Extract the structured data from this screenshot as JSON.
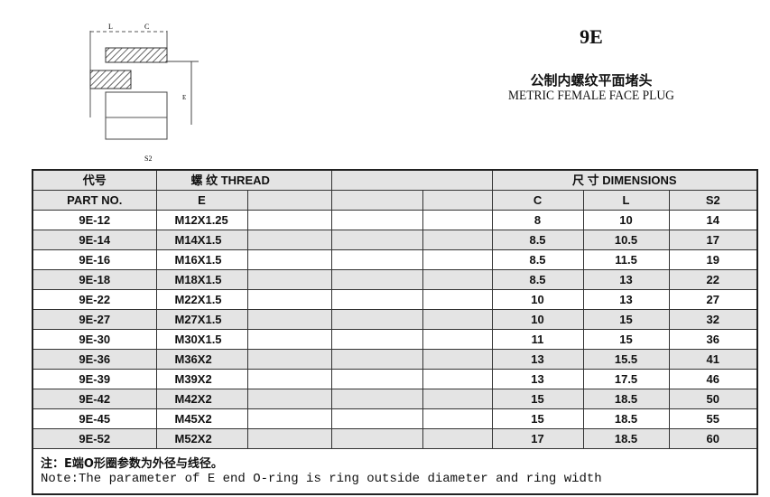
{
  "header": {
    "code": "9E",
    "title_cn": "公制内螺纹平面堵头",
    "title_en": "METRIC FEMALE FACE PLUG"
  },
  "drawing": {
    "labels": [
      "L",
      "C",
      "E",
      "S2"
    ]
  },
  "table": {
    "head1": {
      "part_cn": "代号",
      "thread": "螺  纹  THREAD",
      "dimensions": "尺  寸 DIMENSIONS"
    },
    "head2": {
      "part_en": "PART NO.",
      "e": "E",
      "c": "C",
      "l": "L",
      "s2": "S2"
    },
    "rows": [
      {
        "part": "9E-12",
        "e": "M12X1.25",
        "c": "8",
        "l": "10",
        "s2": "14"
      },
      {
        "part": "9E-14",
        "e": "M14X1.5",
        "c": "8.5",
        "l": "10.5",
        "s2": "17"
      },
      {
        "part": "9E-16",
        "e": "M16X1.5",
        "c": "8.5",
        "l": "11.5",
        "s2": "19"
      },
      {
        "part": "9E-18",
        "e": "M18X1.5",
        "c": "8.5",
        "l": "13",
        "s2": "22"
      },
      {
        "part": "9E-22",
        "e": "M22X1.5",
        "c": "10",
        "l": "13",
        "s2": "27"
      },
      {
        "part": "9E-27",
        "e": "M27X1.5",
        "c": "10",
        "l": "15",
        "s2": "32"
      },
      {
        "part": "9E-30",
        "e": "M30X1.5",
        "c": "11",
        "l": "15",
        "s2": "36"
      },
      {
        "part": "9E-36",
        "e": "M36X2",
        "c": "13",
        "l": "15.5",
        "s2": "41"
      },
      {
        "part": "9E-39",
        "e": "M39X2",
        "c": "13",
        "l": "17.5",
        "s2": "46"
      },
      {
        "part": "9E-42",
        "e": "M42X2",
        "c": "15",
        "l": "18.5",
        "s2": "50"
      },
      {
        "part": "9E-45",
        "e": "M45X2",
        "c": "15",
        "l": "18.5",
        "s2": "55"
      },
      {
        "part": "9E-52",
        "e": "M52X2",
        "c": "17",
        "l": "18.5",
        "s2": "60"
      }
    ],
    "note_cn": "注：E端O形圈参数为外径与线径。",
    "note_en": "Note:The parameter of E end O-ring is ring outside diameter and ring width"
  }
}
